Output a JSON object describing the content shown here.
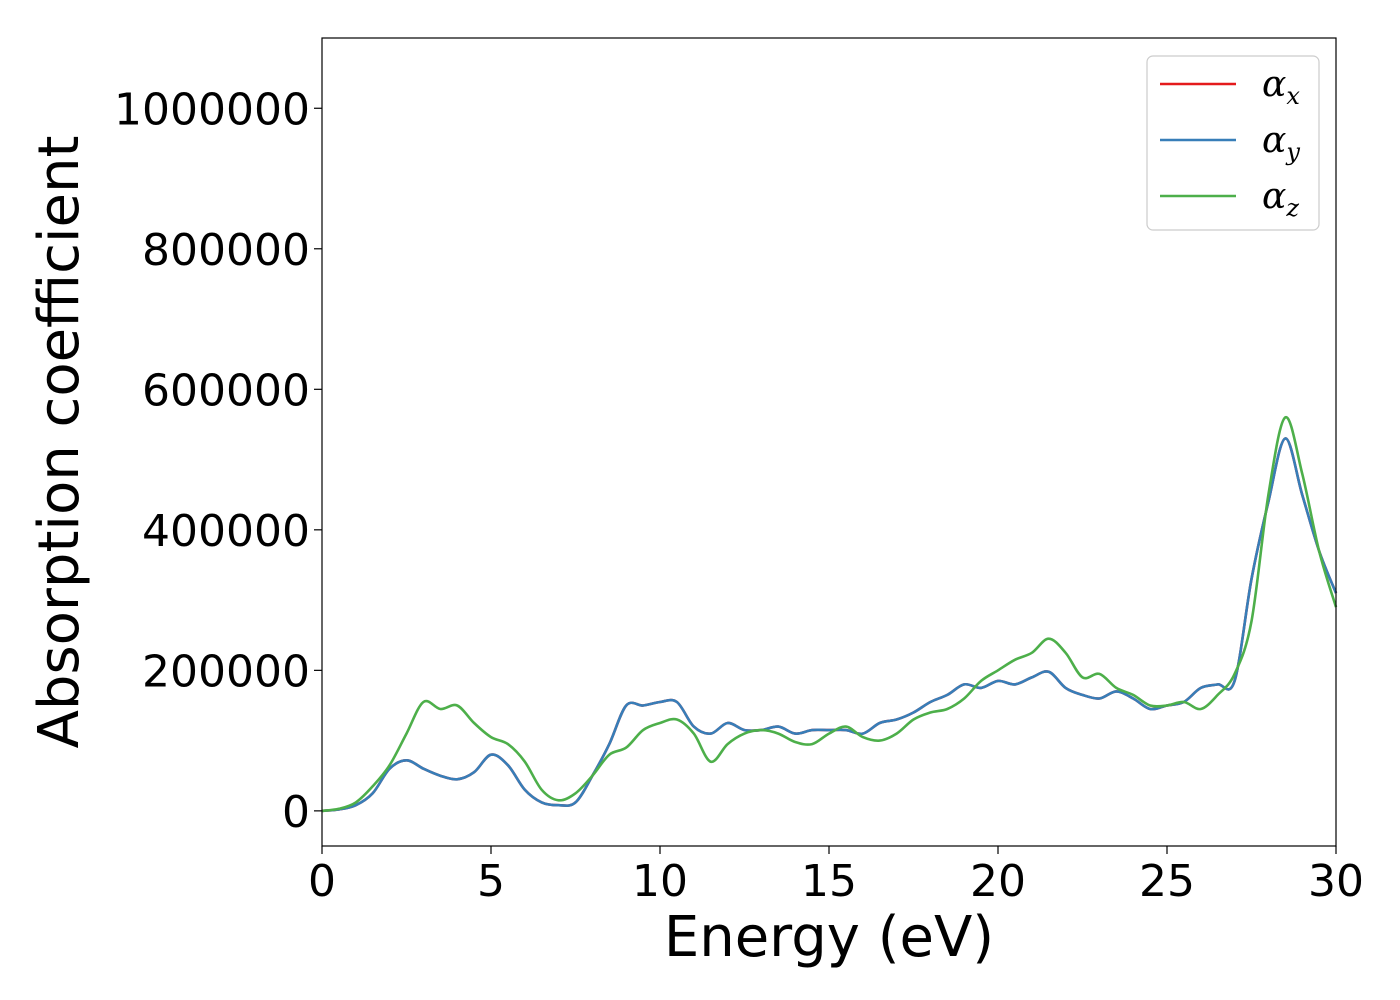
{
  "chart_data": {
    "type": "line",
    "xlabel": "Energy (eV)",
    "ylabel": "Absorption coefficient",
    "xlim": [
      0,
      30
    ],
    "ylim": [
      -50000,
      1100000
    ],
    "xticks": [
      "0",
      "5",
      "10",
      "15",
      "20",
      "25",
      "30"
    ],
    "yticks": [
      "0",
      "200000",
      "400000",
      "600000",
      "800000",
      "1000000"
    ],
    "grid": false,
    "legend_position": "top-right",
    "series": [
      {
        "name": "α",
        "subscript": "x",
        "color": "#e41a1c",
        "x": [
          0,
          0.5,
          1,
          1.5,
          2,
          2.5,
          3,
          3.5,
          4,
          4.5,
          5,
          5.5,
          6,
          6.5,
          7,
          7.5,
          8,
          8.5,
          9,
          9.5,
          10,
          10.5,
          11,
          11.5,
          12,
          12.5,
          13,
          13.5,
          14,
          14.5,
          15,
          15.5,
          16,
          16.5,
          17,
          17.5,
          18,
          18.5,
          19,
          19.5,
          20,
          20.5,
          21,
          21.5,
          22,
          22.5,
          23,
          23.5,
          24,
          24.5,
          25,
          25.5,
          26,
          26.5,
          27,
          27.5,
          28,
          28.5,
          29,
          29.5,
          30
        ],
        "y": [
          0,
          2000,
          8000,
          25000,
          60000,
          72000,
          60000,
          50000,
          45000,
          55000,
          80000,
          65000,
          30000,
          12000,
          8000,
          12000,
          50000,
          95000,
          150000,
          150000,
          155000,
          155000,
          120000,
          110000,
          125000,
          115000,
          115000,
          120000,
          110000,
          115000,
          115000,
          115000,
          110000,
          125000,
          130000,
          140000,
          155000,
          165000,
          180000,
          175000,
          185000,
          180000,
          190000,
          198000,
          175000,
          165000,
          160000,
          170000,
          160000,
          145000,
          150000,
          155000,
          175000,
          180000,
          185000,
          330000,
          440000,
          530000,
          450000,
          370000,
          310000
        ]
      },
      {
        "name": "α",
        "subscript": "y",
        "color": "#377eb8",
        "x": [
          0,
          0.5,
          1,
          1.5,
          2,
          2.5,
          3,
          3.5,
          4,
          4.5,
          5,
          5.5,
          6,
          6.5,
          7,
          7.5,
          8,
          8.5,
          9,
          9.5,
          10,
          10.5,
          11,
          11.5,
          12,
          12.5,
          13,
          13.5,
          14,
          14.5,
          15,
          15.5,
          16,
          16.5,
          17,
          17.5,
          18,
          18.5,
          19,
          19.5,
          20,
          20.5,
          21,
          21.5,
          22,
          22.5,
          23,
          23.5,
          24,
          24.5,
          25,
          25.5,
          26,
          26.5,
          27,
          27.5,
          28,
          28.5,
          29,
          29.5,
          30
        ],
        "y": [
          0,
          2000,
          8000,
          25000,
          60000,
          72000,
          60000,
          50000,
          45000,
          55000,
          80000,
          65000,
          30000,
          12000,
          8000,
          12000,
          50000,
          95000,
          150000,
          150000,
          155000,
          155000,
          120000,
          110000,
          125000,
          115000,
          115000,
          120000,
          110000,
          115000,
          115000,
          115000,
          110000,
          125000,
          130000,
          140000,
          155000,
          165000,
          180000,
          175000,
          185000,
          180000,
          190000,
          198000,
          175000,
          165000,
          160000,
          170000,
          160000,
          145000,
          150000,
          155000,
          175000,
          180000,
          185000,
          330000,
          440000,
          530000,
          450000,
          370000,
          310000
        ]
      },
      {
        "name": "α",
        "subscript": "z",
        "color": "#4daf4a",
        "x": [
          0,
          0.5,
          1,
          1.5,
          2,
          2.5,
          3,
          3.5,
          4,
          4.5,
          5,
          5.5,
          6,
          6.5,
          7,
          7.5,
          8,
          8.5,
          9,
          9.5,
          10,
          10.5,
          11,
          11.5,
          12,
          12.5,
          13,
          13.5,
          14,
          14.5,
          15,
          15.5,
          16,
          16.5,
          17,
          17.5,
          18,
          18.5,
          19,
          19.5,
          20,
          20.5,
          21,
          21.5,
          22,
          22.5,
          23,
          23.5,
          24,
          24.5,
          25,
          25.5,
          26,
          26.5,
          27,
          27.5,
          28,
          28.5,
          29,
          29.5,
          30
        ],
        "y": [
          0,
          3000,
          12000,
          35000,
          65000,
          110000,
          155000,
          145000,
          150000,
          125000,
          105000,
          95000,
          70000,
          30000,
          15000,
          25000,
          50000,
          80000,
          90000,
          115000,
          125000,
          130000,
          110000,
          70000,
          95000,
          110000,
          115000,
          110000,
          98000,
          95000,
          110000,
          120000,
          105000,
          100000,
          110000,
          130000,
          140000,
          145000,
          160000,
          185000,
          200000,
          215000,
          225000,
          245000,
          225000,
          190000,
          195000,
          175000,
          165000,
          150000,
          150000,
          155000,
          145000,
          165000,
          195000,
          270000,
          450000,
          560000,
          480000,
          370000,
          290000
        ]
      }
    ]
  }
}
